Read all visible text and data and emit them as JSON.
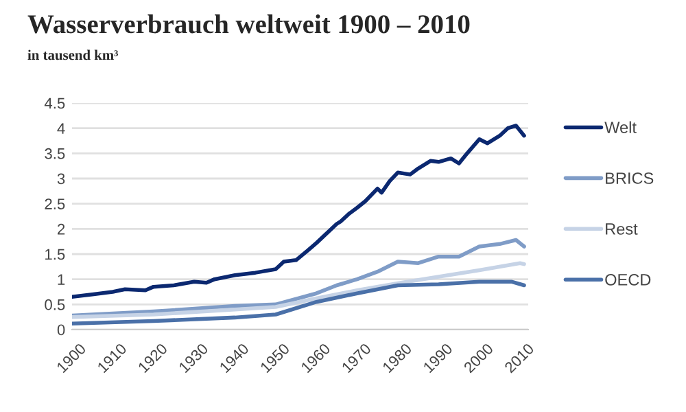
{
  "chart_data": {
    "type": "line",
    "title": "Wasserverbrauch weltweit 1900 – 2010",
    "subtitle": "in tausend km³",
    "xlim": [
      1900,
      2012
    ],
    "xticks": [
      1900,
      1910,
      1920,
      1930,
      1940,
      1950,
      1960,
      1970,
      1980,
      1990,
      2000,
      2010
    ],
    "ylim": [
      0,
      4.5
    ],
    "yticks": [
      0,
      0.5,
      1,
      1.5,
      2,
      2.5,
      3,
      3.5,
      4,
      4.5
    ],
    "grid": "y",
    "legend": "right",
    "series": [
      {
        "name": "Welt",
        "color": "#0b2870",
        "x": [
          1900,
          1905,
          1910,
          1913,
          1918,
          1920,
          1925,
          1930,
          1933,
          1935,
          1940,
          1945,
          1950,
          1952,
          1955,
          1958,
          1960,
          1965,
          1966,
          1968,
          1970,
          1972,
          1975,
          1976,
          1978,
          1980,
          1983,
          1985,
          1988,
          1990,
          1993,
          1995,
          1997,
          2000,
          2002,
          2005,
          2007,
          2009,
          2011
        ],
        "values": [
          0.65,
          0.7,
          0.75,
          0.8,
          0.78,
          0.85,
          0.88,
          0.95,
          0.93,
          1.0,
          1.08,
          1.13,
          1.2,
          1.35,
          1.38,
          1.58,
          1.72,
          2.1,
          2.15,
          2.3,
          2.42,
          2.55,
          2.8,
          2.72,
          2.95,
          3.12,
          3.08,
          3.2,
          3.35,
          3.33,
          3.4,
          3.3,
          3.5,
          3.78,
          3.7,
          3.85,
          4.0,
          4.05,
          3.85
        ]
      },
      {
        "name": "BRICS",
        "color": "#7f9cc7",
        "x": [
          1900,
          1920,
          1940,
          1950,
          1960,
          1965,
          1970,
          1975,
          1980,
          1985,
          1990,
          1995,
          2000,
          2005,
          2009,
          2011
        ],
        "values": [
          0.28,
          0.36,
          0.47,
          0.5,
          0.72,
          0.88,
          1.0,
          1.15,
          1.35,
          1.32,
          1.45,
          1.45,
          1.65,
          1.7,
          1.78,
          1.65
        ]
      },
      {
        "name": "Rest",
        "color": "#c6d3e6",
        "x": [
          1900,
          1920,
          1940,
          1950,
          1960,
          1970,
          1980,
          1990,
          2000,
          2010,
          2011
        ],
        "values": [
          0.25,
          0.3,
          0.4,
          0.45,
          0.62,
          0.78,
          0.92,
          1.05,
          1.18,
          1.32,
          1.3
        ]
      },
      {
        "name": "OECD",
        "color": "#4a70a8",
        "x": [
          1900,
          1920,
          1940,
          1950,
          1960,
          1970,
          1980,
          1990,
          2000,
          2008,
          2011
        ],
        "values": [
          0.12,
          0.17,
          0.24,
          0.3,
          0.55,
          0.72,
          0.88,
          0.9,
          0.95,
          0.95,
          0.88
        ]
      }
    ]
  }
}
